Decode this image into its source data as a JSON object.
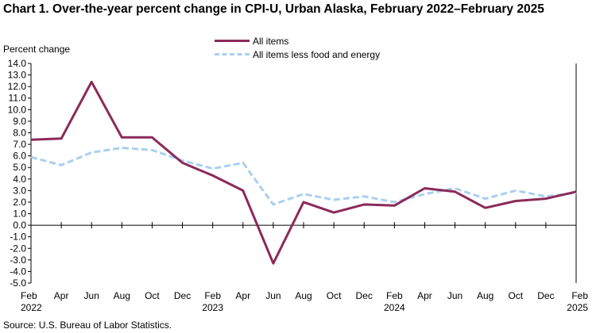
{
  "chart_data": {
    "type": "line",
    "title": "Chart 1. Over-the-year percent change in CPI-U, Urban Alaska, February 2022–February 2025",
    "ylabel": "Percent change",
    "xlabel": "",
    "ylim": [
      -5.0,
      14.0
    ],
    "ytick_step": 1.0,
    "ytick_labels": [
      "14.0",
      "13.0",
      "12.0",
      "11.0",
      "10.0",
      "9.0",
      "8.0",
      "7.0",
      "6.0",
      "5.0",
      "4.0",
      "3.0",
      "2.0",
      "1.0",
      "0.0",
      "-1.0",
      "-2.0",
      "-3.0",
      "-4.0",
      "-5.0"
    ],
    "x": [
      "Feb 2022",
      "Apr 2022",
      "Jun 2022",
      "Aug 2022",
      "Oct 2022",
      "Dec 2022",
      "Feb 2023",
      "Apr 2023",
      "Jun 2023",
      "Aug 2023",
      "Oct 2023",
      "Dec 2023",
      "Feb 2024",
      "Apr 2024",
      "Jun 2024",
      "Aug 2024",
      "Oct 2024",
      "Dec 2024",
      "Feb 2025"
    ],
    "xtick_labels": [
      "Feb",
      "Apr",
      "Jun",
      "Aug",
      "Oct",
      "Dec",
      "Feb",
      "Apr",
      "Jun",
      "Aug",
      "Oct",
      "Dec",
      "Feb",
      "Apr",
      "Jun",
      "Aug",
      "Oct",
      "Dec",
      "Feb"
    ],
    "xtick_years": [
      "2022",
      "",
      "",
      "",
      "",
      "",
      "2023",
      "",
      "",
      "",
      "",
      "",
      "2024",
      "",
      "",
      "",
      "",
      "",
      "2025"
    ],
    "series": [
      {
        "name": "All items",
        "color": "#8b2a59",
        "style": "solid",
        "values": [
          7.4,
          7.5,
          12.4,
          7.6,
          7.6,
          5.4,
          4.3,
          3.0,
          -3.3,
          2.0,
          1.1,
          1.8,
          1.7,
          3.2,
          2.9,
          1.5,
          2.1,
          2.3,
          2.9
        ]
      },
      {
        "name": "All items less food and energy",
        "color": "#a9cff0",
        "style": "dashed",
        "values": [
          5.9,
          5.2,
          6.3,
          6.7,
          6.5,
          5.6,
          4.9,
          5.4,
          1.8,
          2.7,
          2.2,
          2.5,
          2.0,
          2.7,
          3.2,
          2.3,
          3.0,
          2.5,
          2.8
        ]
      }
    ],
    "source": "Source: U.S. Bureau of Labor Statistics."
  }
}
